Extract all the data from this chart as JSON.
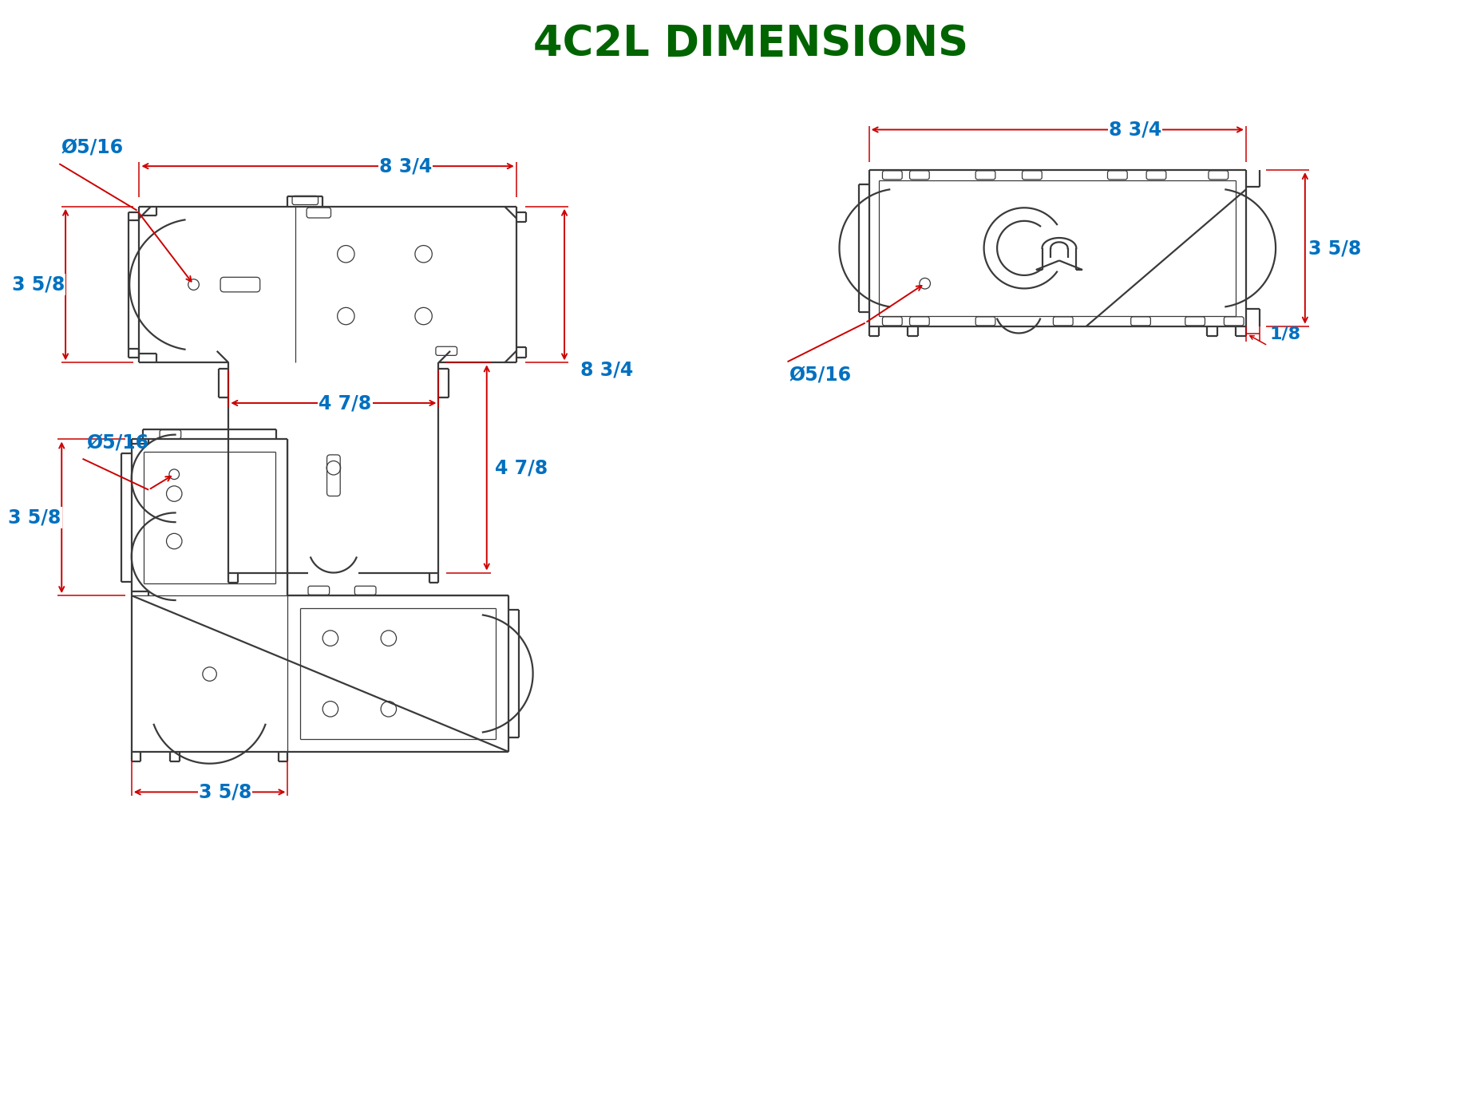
{
  "title": "4C2L DIMENSIONS",
  "title_color": "#006400",
  "title_fontsize": 38,
  "dim_color": "#0070C0",
  "arrow_color": "#CC0000",
  "line_color": "#3a3a3a",
  "bg_color": "#FFFFFF",
  "dim_fontsize": 17,
  "annotations": {
    "tv_width": "8 3/4",
    "tv_height": "8 3/4",
    "tv_sub_width": "4 7/8",
    "tv_sub_height": "4 7/8",
    "tv_left_h": "3 5/8",
    "tv_hole": "Ø5/16",
    "rv_width": "8 3/4",
    "rv_height": "3 5/8",
    "rv_hole": "Ø5/16",
    "rv_small": "1/8",
    "bv_height": "3 5/8",
    "bv_width": "3 5/8",
    "bv_hole": "Ø5/16"
  }
}
